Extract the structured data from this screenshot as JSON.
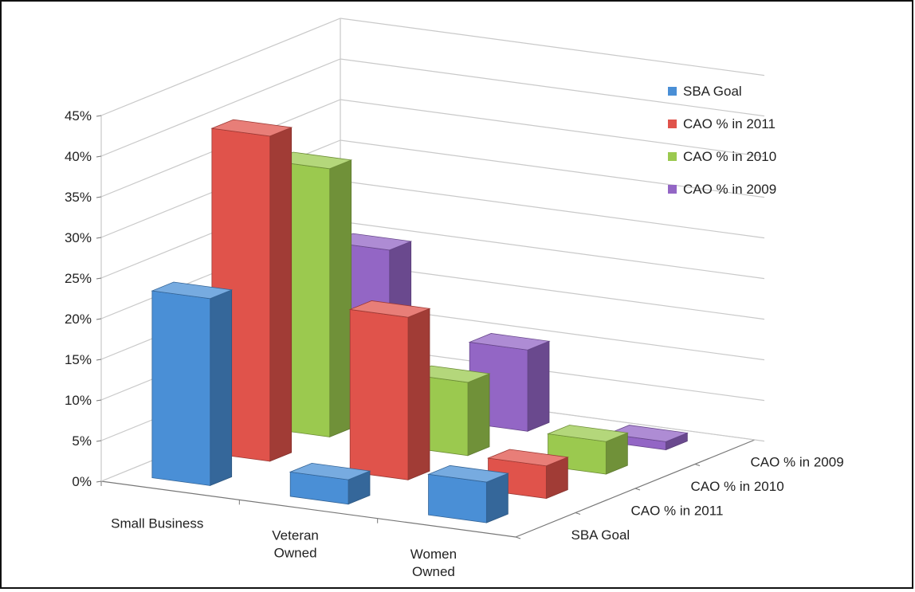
{
  "chart_data": {
    "type": "bar",
    "subtype": "3d-column",
    "categories": [
      "Small Business",
      "Veteran Owned",
      "Women Owned"
    ],
    "category_lines": [
      [
        "Small Business"
      ],
      [
        "Veteran",
        "Owned"
      ],
      [
        "Women",
        "Owned"
      ]
    ],
    "series": [
      {
        "name": "SBA Goal",
        "values": [
          23,
          3,
          5
        ],
        "color": "#4a8fd6"
      },
      {
        "name": "CAO % in 2011",
        "values": [
          40,
          20,
          4
        ],
        "color": "#e0534b"
      },
      {
        "name": "CAO % in 2010",
        "values": [
          33,
          9,
          4
        ],
        "color": "#9bc94f"
      },
      {
        "name": "CAO % in 2009",
        "values": [
          20,
          10,
          1
        ],
        "color": "#9366c5"
      }
    ],
    "depth_labels": [
      "SBA Goal",
      "CAO % in 2011",
      "CAO % in 2010",
      "CAO % in 2009"
    ],
    "y_ticks": [
      "0%",
      "5%",
      "10%",
      "15%",
      "20%",
      "25%",
      "30%",
      "35%",
      "40%",
      "45%"
    ],
    "ylim": [
      0,
      45
    ],
    "y_format": "percent",
    "gridlines": true,
    "legend_position": "top-right"
  }
}
